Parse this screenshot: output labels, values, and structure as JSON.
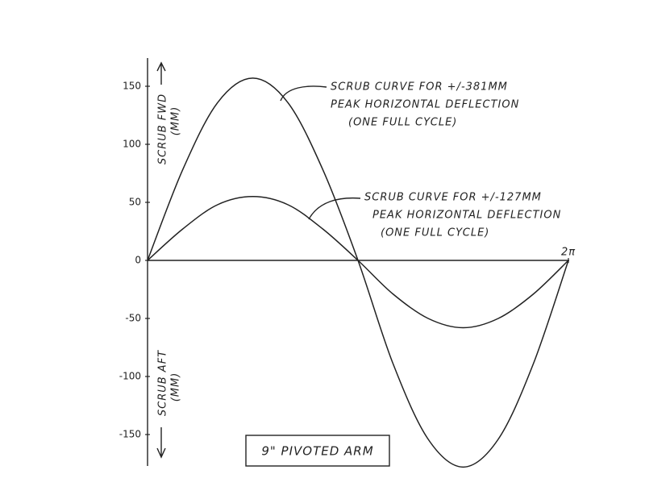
{
  "chart_data": {
    "type": "line",
    "x": [
      0,
      0.524,
      1.047,
      1.571,
      2.094,
      2.618,
      3.142,
      3.665,
      4.189,
      4.712,
      5.236,
      5.76,
      6.283
    ],
    "series": [
      {
        "color": "#222222",
        "values": [
          0,
          78,
          136,
          157,
          136,
          78,
          0,
          -89,
          -154,
          -178,
          -154,
          -89,
          0
        ]
      },
      {
        "color": "#222222",
        "values": [
          0,
          27,
          48,
          55,
          48,
          27,
          0,
          -29,
          -50,
          -58,
          -50,
          -29,
          0
        ]
      }
    ],
    "xlim": [
      0,
      6.283
    ],
    "xticks": [
      {
        "value": 6.283,
        "label": "2π"
      }
    ],
    "ylim": [
      -175,
      175
    ],
    "yticks": [
      150,
      100,
      50,
      0,
      -50,
      -100,
      -150
    ],
    "ylabel_top": [
      "SCRUB FWD",
      "(MM)"
    ],
    "ylabel_bottom": [
      "SCRUB AFT",
      "(MM)"
    ],
    "annotations": [
      {
        "lines": [
          "SCRUB CURVE FOR +/-381MM",
          "PEAK HORIZONTAL DEFLECTION",
          "(ONE FULL CYCLE)"
        ]
      },
      {
        "lines": [
          "SCRUB CURVE FOR +/-127MM",
          "PEAK HORIZONTAL DEFLECTION",
          "(ONE FULL CYCLE)"
        ]
      }
    ],
    "box_label": "9\" PIVOTED ARM"
  }
}
